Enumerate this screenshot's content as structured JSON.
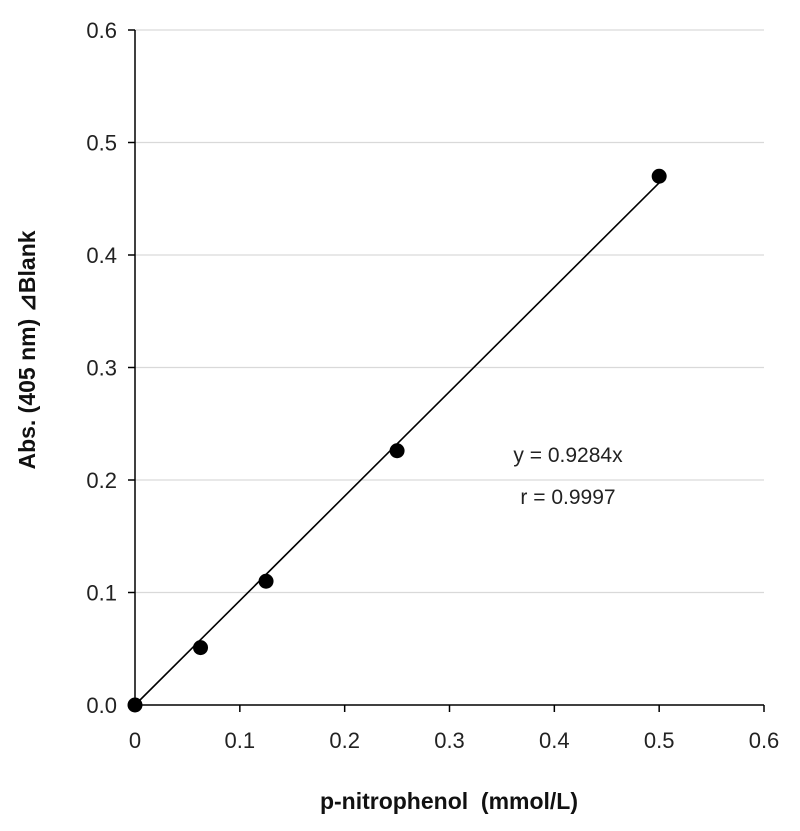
{
  "chart_data": {
    "type": "scatter",
    "title": "",
    "xlabel": "p-nitrophenol  (mmol/L)",
    "ylabel": "Abs. (405 nm) ⊿Blank",
    "xlim": [
      0,
      0.6
    ],
    "ylim": [
      0,
      0.6
    ],
    "xticks": [
      "0",
      "0.1",
      "0.2",
      "0.3",
      "0.4",
      "0.5",
      "0.6"
    ],
    "yticks": [
      "0.0",
      "0.1",
      "0.2",
      "0.3",
      "0.4",
      "0.5",
      "0.6"
    ],
    "grid": "horizontal",
    "series": [
      {
        "name": "data",
        "x": [
          0,
          0.0625,
          0.125,
          0.25,
          0.5
        ],
        "y": [
          0,
          0.051,
          0.11,
          0.226,
          0.47
        ]
      }
    ],
    "trendline": {
      "slope": 0.9284,
      "intercept": 0,
      "x_range": [
        0,
        0.5
      ]
    },
    "annotations": [
      "y = 0.9284x",
      "r = 0.9997"
    ],
    "colors": {
      "marker": "#000000",
      "line": "#000000",
      "grid": "#d9d9d9",
      "axis": "#000000"
    }
  }
}
